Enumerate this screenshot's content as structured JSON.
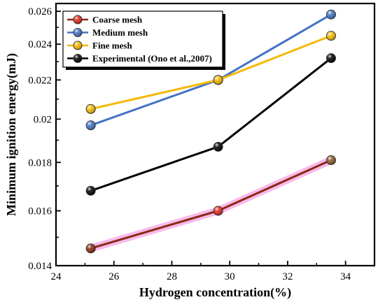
{
  "chart_data": {
    "type": "line",
    "xlabel": "Hydrogen concentration(%)",
    "ylabel": "Minimum ignition energy(mJ)",
    "xlim": [
      24,
      35
    ],
    "ylim": [
      0.014,
      0.0265
    ],
    "x_ticks": [
      24,
      26,
      28,
      30,
      32,
      34
    ],
    "x_tick_labels": [
      "24",
      "26",
      "28",
      "30",
      "32",
      "34"
    ],
    "y_ticks": [
      0.014,
      0.016,
      0.018,
      0.02,
      0.022,
      0.024,
      0.026
    ],
    "y_tick_labels": [
      "0.014",
      "0.016",
      "0.018",
      "0.02",
      "0.022",
      "0.024",
      "0.026"
    ],
    "y_scale": "log",
    "grid": false,
    "legend_position": "top-left",
    "x": [
      25.2,
      29.6,
      33.5
    ],
    "series": [
      {
        "name": "Coarse mesh",
        "values": [
          0.0146,
          0.016,
          0.0181
        ],
        "line_color": "#8B2A12",
        "marker_color": "#e0281c",
        "marker_colors": [
          "#8B2A12",
          "#e0281c",
          "#8b5a2b"
        ],
        "glow": true
      },
      {
        "name": "Medium mesh",
        "values": [
          0.0197,
          0.022,
          0.0258
        ],
        "line_color": "#4472c4",
        "marker_color": "#4472c4"
      },
      {
        "name": "Fine mesh",
        "values": [
          0.0205,
          0.022,
          0.0245
        ],
        "line_color": "#f5b800",
        "marker_color": "#f5b800"
      },
      {
        "name": "Experimental (Ono et al.,2007)",
        "values": [
          0.0168,
          0.0187,
          0.0232
        ],
        "line_color": "#000000",
        "marker_color": "#000000"
      }
    ]
  }
}
